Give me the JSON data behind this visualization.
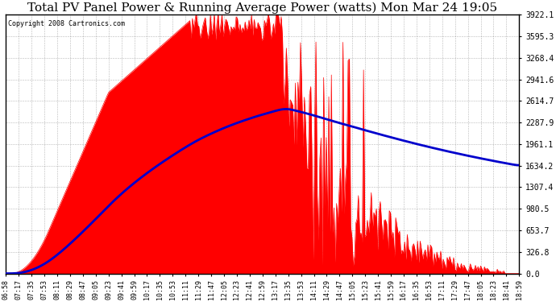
{
  "title": "Total PV Panel Power & Running Average Power (watts) Mon Mar 24 19:05",
  "copyright": "Copyright 2008 Cartronics.com",
  "background_color": "#ffffff",
  "plot_bg_color": "#ffffff",
  "grid_color": "#888888",
  "bar_color": "#ff0000",
  "line_color": "#0000cc",
  "y_ticks": [
    0.0,
    326.8,
    653.7,
    980.5,
    1307.4,
    1634.2,
    1961.1,
    2287.9,
    2614.7,
    2941.6,
    3268.4,
    3595.3,
    3922.1
  ],
  "x_tick_labels": [
    "06:58",
    "07:17",
    "07:35",
    "07:53",
    "08:11",
    "08:29",
    "08:47",
    "09:05",
    "09:23",
    "09:41",
    "09:59",
    "10:17",
    "10:35",
    "10:53",
    "11:11",
    "11:29",
    "11:47",
    "12:05",
    "12:23",
    "12:41",
    "12:59",
    "13:17",
    "13:35",
    "13:53",
    "14:11",
    "14:29",
    "14:47",
    "15:05",
    "15:23",
    "15:41",
    "15:59",
    "16:17",
    "16:35",
    "16:53",
    "17:11",
    "17:29",
    "17:47",
    "18:05",
    "18:23",
    "18:41",
    "18:59"
  ],
  "ymax": 3922.1,
  "title_fontsize": 11
}
